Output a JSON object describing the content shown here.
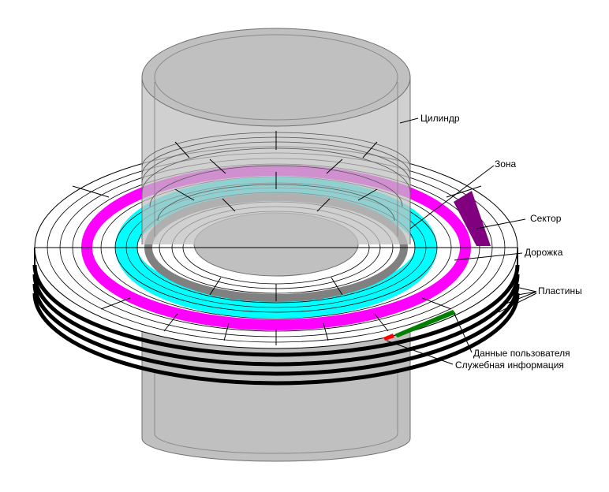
{
  "labels": {
    "cylinder": "Цилиндр",
    "zone": "Зона",
    "sector": "Сектор",
    "track": "Дорожка",
    "platters": "Пластины",
    "user_data": "Данные пользователя",
    "service_info": "Служебная информация"
  },
  "colors": {
    "cylinder_fill": "#c0c0c0",
    "cylinder_stroke": "#707070",
    "zone_outer": "#ff00ff",
    "zone_inner": "#00ffff",
    "cylinder_track": "#808080",
    "sector": "#800080",
    "user_data": "#008000",
    "service_info": "#ff0000",
    "platter_edge": "#000000"
  }
}
